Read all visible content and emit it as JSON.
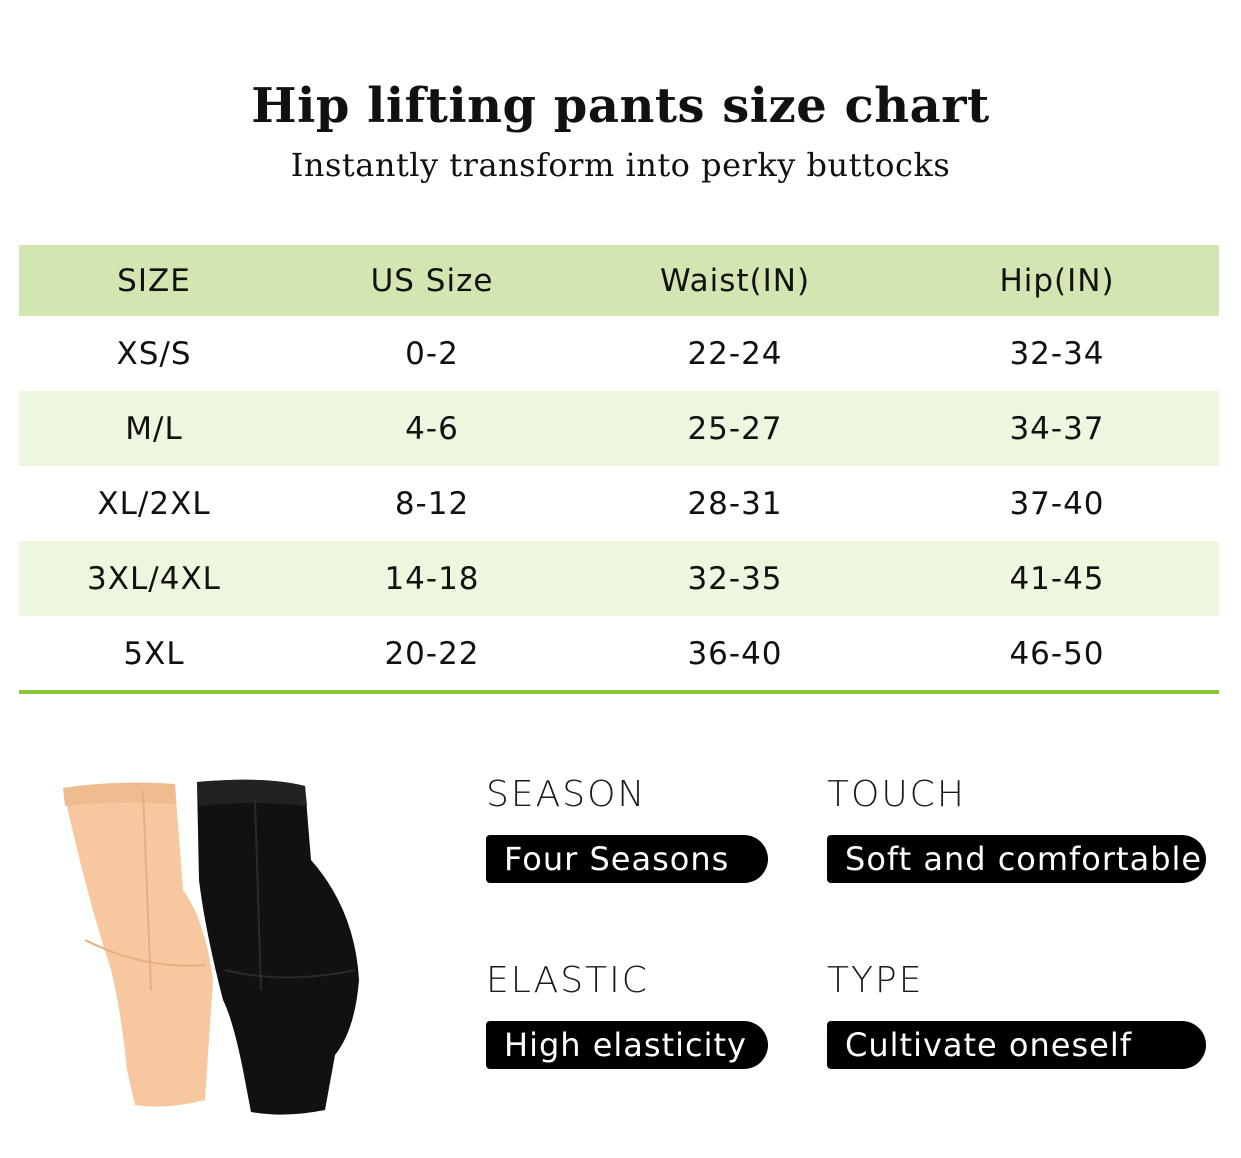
{
  "header": {
    "title": "Hip lifting pants size chart",
    "subtitle": "Instantly transform into perky buttocks"
  },
  "table": {
    "columns": [
      "SIZE",
      "US Size",
      "Waist(IN)",
      "Hip(IN)"
    ],
    "rows": [
      [
        "XS/S",
        "0-2",
        "22-24",
        "32-34"
      ],
      [
        "M/L",
        "4-6",
        "25-27",
        "34-37"
      ],
      [
        "XL/2XL",
        "8-12",
        "28-31",
        "37-40"
      ],
      [
        "3XL/4XL",
        "14-18",
        "32-35",
        "41-45"
      ],
      [
        "5XL",
        "20-22",
        "36-40",
        "46-50"
      ]
    ]
  },
  "attributes": [
    {
      "label": "SEASON",
      "value": "Four Seasons"
    },
    {
      "label": "TOUCH",
      "value": "Soft and comfortable"
    },
    {
      "label": "ELASTIC",
      "value": "High elasticity"
    },
    {
      "label": "TYPE",
      "value": "Cultivate oneself"
    }
  ],
  "colors": {
    "header_row": "#d3e6b2",
    "alt_row": "#edf6de",
    "rule": "#8cc43c",
    "product_nude": "#f7c8a0",
    "product_black": "#111111"
  }
}
